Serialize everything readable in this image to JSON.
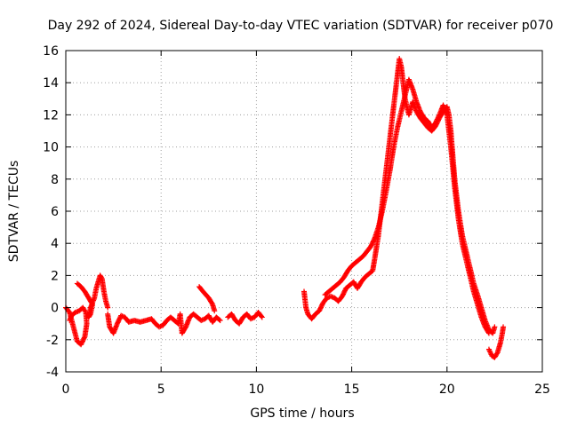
{
  "chart_data": {
    "type": "scatter",
    "title": "Day 292 of 2024, Sidereal Day-to-day VTEC variation (SDTVAR) for receiver p070",
    "xlabel": "GPS time / hours",
    "ylabel": "SDTVAR / TECUs",
    "xlim": [
      0,
      25
    ],
    "ylim": [
      -4,
      16
    ],
    "xticks": [
      0,
      5,
      10,
      15,
      20,
      25
    ],
    "yticks": [
      -4,
      -2,
      0,
      2,
      4,
      6,
      8,
      10,
      12,
      14,
      16
    ],
    "grid": true,
    "marker": "+",
    "series_color": "#ff0000",
    "series": [
      {
        "name": "SDTVAR",
        "segments": [
          [
            [
              0.0,
              0.0
            ],
            [
              0.2,
              -0.3
            ],
            [
              0.4,
              -1.2
            ],
            [
              0.6,
              -2.1
            ],
            [
              0.8,
              -2.3
            ],
            [
              1.0,
              -1.8
            ],
            [
              1.1,
              -1.0
            ],
            [
              1.05,
              -0.3
            ],
            [
              0.9,
              0.0
            ],
            [
              0.7,
              -0.2
            ],
            [
              0.5,
              -0.3
            ],
            [
              0.3,
              -0.5
            ],
            [
              0.2,
              -0.8
            ]
          ],
          [
            [
              0.6,
              1.5
            ],
            [
              0.8,
              1.3
            ],
            [
              1.0,
              1.0
            ],
            [
              1.2,
              0.6
            ],
            [
              1.4,
              0.2
            ],
            [
              1.3,
              -0.4
            ],
            [
              1.2,
              -0.6
            ],
            [
              1.3,
              0.0
            ],
            [
              1.5,
              0.6
            ],
            [
              1.6,
              1.2
            ],
            [
              1.8,
              2.0
            ],
            [
              1.9,
              1.8
            ],
            [
              2.0,
              1.0
            ],
            [
              2.1,
              0.4
            ],
            [
              2.2,
              0.0
            ]
          ],
          [
            [
              2.2,
              -0.4
            ],
            [
              2.3,
              -1.2
            ],
            [
              2.5,
              -1.6
            ],
            [
              2.7,
              -1.0
            ],
            [
              2.9,
              -0.5
            ],
            [
              3.1,
              -0.6
            ],
            [
              3.3,
              -0.9
            ],
            [
              3.6,
              -0.8
            ],
            [
              3.9,
              -0.9
            ],
            [
              4.2,
              -0.8
            ],
            [
              4.5,
              -0.7
            ],
            [
              4.7,
              -1.0
            ],
            [
              4.9,
              -1.2
            ],
            [
              5.1,
              -1.1
            ],
            [
              5.3,
              -0.8
            ],
            [
              5.5,
              -0.6
            ],
            [
              5.7,
              -0.8
            ],
            [
              5.9,
              -1.0
            ],
            [
              6.0,
              -0.4
            ],
            [
              6.1,
              -1.6
            ],
            [
              6.3,
              -1.2
            ],
            [
              6.5,
              -0.6
            ],
            [
              6.7,
              -0.4
            ],
            [
              6.9,
              -0.6
            ],
            [
              7.1,
              -0.8
            ],
            [
              7.3,
              -0.7
            ],
            [
              7.5,
              -0.5
            ],
            [
              7.7,
              -0.9
            ],
            [
              7.9,
              -0.6
            ],
            [
              8.1,
              -0.8
            ]
          ],
          [
            [
              7.0,
              1.3
            ],
            [
              7.2,
              1.0
            ],
            [
              7.5,
              0.6
            ],
            [
              7.7,
              0.2
            ],
            [
              7.8,
              -0.2
            ]
          ],
          [
            [
              8.5,
              -0.6
            ],
            [
              8.7,
              -0.4
            ],
            [
              8.9,
              -0.8
            ],
            [
              9.1,
              -1.0
            ],
            [
              9.3,
              -0.6
            ],
            [
              9.5,
              -0.4
            ],
            [
              9.7,
              -0.7
            ],
            [
              9.9,
              -0.6
            ],
            [
              10.1,
              -0.3
            ],
            [
              10.3,
              -0.6
            ]
          ],
          [
            [
              12.5,
              1.0
            ],
            [
              12.6,
              0.0
            ],
            [
              12.7,
              -0.4
            ],
            [
              12.9,
              -0.7
            ],
            [
              13.1,
              -0.4
            ],
            [
              13.3,
              -0.2
            ],
            [
              13.5,
              0.3
            ],
            [
              13.7,
              0.6
            ],
            [
              13.9,
              0.7
            ],
            [
              14.1,
              0.6
            ],
            [
              14.3,
              0.4
            ],
            [
              14.5,
              0.7
            ],
            [
              14.7,
              1.2
            ],
            [
              14.9,
              1.4
            ],
            [
              15.1,
              1.6
            ],
            [
              15.3,
              1.2
            ],
            [
              15.5,
              1.6
            ],
            [
              15.7,
              1.9
            ],
            [
              15.9,
              2.1
            ],
            [
              16.1,
              2.3
            ],
            [
              16.2,
              3.0
            ],
            [
              16.4,
              4.5
            ],
            [
              16.6,
              6.5
            ],
            [
              16.8,
              8.5
            ],
            [
              17.0,
              10.5
            ],
            [
              17.1,
              11.5
            ],
            [
              17.2,
              12.5
            ],
            [
              17.3,
              13.5
            ],
            [
              17.4,
              14.5
            ],
            [
              17.5,
              15.5
            ],
            [
              17.6,
              15.0
            ],
            [
              17.7,
              14.0
            ],
            [
              17.8,
              13.0
            ],
            [
              17.9,
              12.5
            ],
            [
              18.0,
              12.0
            ],
            [
              18.2,
              12.8
            ],
            [
              18.4,
              12.2
            ],
            [
              18.6,
              11.8
            ],
            [
              18.8,
              11.5
            ],
            [
              19.0,
              11.2
            ],
            [
              19.2,
              11.0
            ],
            [
              19.4,
              11.3
            ],
            [
              19.6,
              11.8
            ],
            [
              19.8,
              12.2
            ],
            [
              20.0,
              12.5
            ],
            [
              20.1,
              12.0
            ],
            [
              20.2,
              11.0
            ],
            [
              20.3,
              9.5
            ],
            [
              20.4,
              8.0
            ],
            [
              20.6,
              6.0
            ],
            [
              20.8,
              4.5
            ],
            [
              21.0,
              3.5
            ],
            [
              21.2,
              2.5
            ],
            [
              21.4,
              1.5
            ],
            [
              21.6,
              0.8
            ],
            [
              21.8,
              0.0
            ],
            [
              22.0,
              -0.8
            ],
            [
              22.2,
              -1.4
            ],
            [
              22.4,
              -1.6
            ],
            [
              22.5,
              -1.2
            ]
          ],
          [
            [
              13.6,
              0.8
            ],
            [
              13.8,
              1.0
            ],
            [
              14.0,
              1.2
            ],
            [
              14.2,
              1.4
            ],
            [
              14.4,
              1.6
            ],
            [
              14.6,
              1.9
            ],
            [
              14.8,
              2.3
            ],
            [
              15.0,
              2.6
            ],
            [
              15.2,
              2.8
            ],
            [
              15.4,
              3.0
            ],
            [
              15.6,
              3.2
            ],
            [
              15.8,
              3.5
            ],
            [
              16.0,
              3.8
            ],
            [
              16.2,
              4.3
            ],
            [
              16.4,
              5.0
            ],
            [
              16.6,
              6.0
            ],
            [
              16.8,
              7.2
            ],
            [
              17.0,
              8.5
            ],
            [
              17.2,
              10.0
            ],
            [
              17.4,
              11.2
            ],
            [
              17.6,
              12.2
            ],
            [
              17.8,
              13.2
            ],
            [
              18.0,
              14.2
            ],
            [
              18.2,
              13.6
            ],
            [
              18.4,
              12.8
            ],
            [
              18.6,
              12.2
            ],
            [
              18.8,
              11.8
            ],
            [
              19.0,
              11.6
            ],
            [
              19.2,
              11.2
            ],
            [
              19.4,
              11.5
            ],
            [
              19.6,
              12.0
            ],
            [
              19.8,
              12.6
            ],
            [
              20.0,
              12.0
            ],
            [
              20.2,
              10.0
            ],
            [
              20.4,
              7.5
            ],
            [
              20.6,
              5.5
            ],
            [
              20.8,
              4.0
            ],
            [
              21.0,
              3.0
            ],
            [
              21.2,
              2.0
            ],
            [
              21.4,
              1.0
            ],
            [
              21.6,
              0.2
            ],
            [
              21.8,
              -0.6
            ],
            [
              22.0,
              -1.2
            ],
            [
              22.2,
              -1.6
            ]
          ],
          [
            [
              22.2,
              -2.6
            ],
            [
              22.35,
              -3.0
            ],
            [
              22.5,
              -3.1
            ],
            [
              22.65,
              -2.8
            ],
            [
              22.8,
              -2.2
            ],
            [
              22.9,
              -1.6
            ],
            [
              22.95,
              -1.2
            ]
          ]
        ]
      }
    ]
  }
}
